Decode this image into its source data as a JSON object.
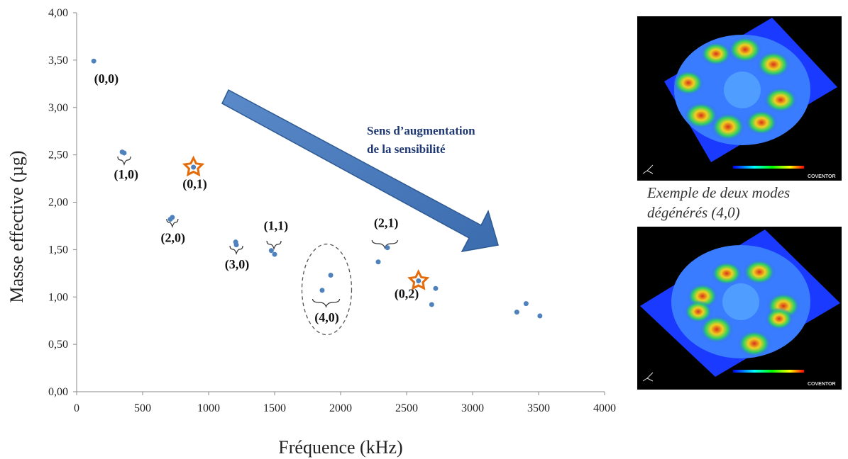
{
  "chart_data": {
    "type": "scatter",
    "xlabel": "Fréquence (kHz)",
    "ylabel": "Masse effective (µg)",
    "xlim": [
      0,
      4000
    ],
    "ylim": [
      0,
      4
    ],
    "x_ticks": [
      "0",
      "500",
      "1000",
      "1500",
      "2000",
      "2500",
      "3000",
      "3500",
      "4000"
    ],
    "y_ticks": [
      "0,00",
      "0,50",
      "1,00",
      "1,50",
      "2,00",
      "2,50",
      "3,00",
      "3,50",
      "4,00"
    ],
    "grid": false,
    "marker_color": "#4f81bd",
    "highlight_color": "#e46c0a",
    "points": [
      {
        "x": 130,
        "y": 3.49
      },
      {
        "x": 345,
        "y": 2.53
      },
      {
        "x": 360,
        "y": 2.52
      },
      {
        "x": 710,
        "y": 1.82
      },
      {
        "x": 725,
        "y": 1.84
      },
      {
        "x": 885,
        "y": 2.37
      },
      {
        "x": 1205,
        "y": 1.58
      },
      {
        "x": 1210,
        "y": 1.55
      },
      {
        "x": 1475,
        "y": 1.49
      },
      {
        "x": 1500,
        "y": 1.45
      },
      {
        "x": 1860,
        "y": 1.07
      },
      {
        "x": 1925,
        "y": 1.23
      },
      {
        "x": 2285,
        "y": 1.37
      },
      {
        "x": 2355,
        "y": 1.52
      },
      {
        "x": 2590,
        "y": 1.17
      },
      {
        "x": 2690,
        "y": 0.92
      },
      {
        "x": 2720,
        "y": 1.09
      },
      {
        "x": 3335,
        "y": 0.84
      },
      {
        "x": 3405,
        "y": 0.93
      },
      {
        "x": 3510,
        "y": 0.8
      }
    ],
    "highlighted_points": [
      {
        "x": 885,
        "y": 2.37
      },
      {
        "x": 2590,
        "y": 1.17
      }
    ],
    "annotations": [
      {
        "text": "(0,0)",
        "x": 225,
        "y": 3.26
      },
      {
        "text": "(1,0)",
        "x": 375,
        "y": 2.25
      },
      {
        "text": "(0,1)",
        "x": 895,
        "y": 2.15
      },
      {
        "text": "(2,0)",
        "x": 730,
        "y": 1.58
      },
      {
        "text": "(3,0)",
        "x": 1215,
        "y": 1.3
      },
      {
        "text": "(1,1)",
        "x": 1510,
        "y": 1.71
      },
      {
        "text": "(2,1)",
        "x": 2345,
        "y": 1.74
      },
      {
        "text": "(4,0)",
        "x": 1895,
        "y": 0.74
      },
      {
        "text": "(0,2)",
        "x": 2500,
        "y": 0.99
      }
    ],
    "arrow_text": [
      "Sens d’augmentation",
      "de la sensibilité"
    ]
  },
  "side_panel": {
    "caption_line1": "Exemple de deux modes",
    "caption_line2": "dégénérés (4,0)",
    "brand": "COVENTOR"
  }
}
